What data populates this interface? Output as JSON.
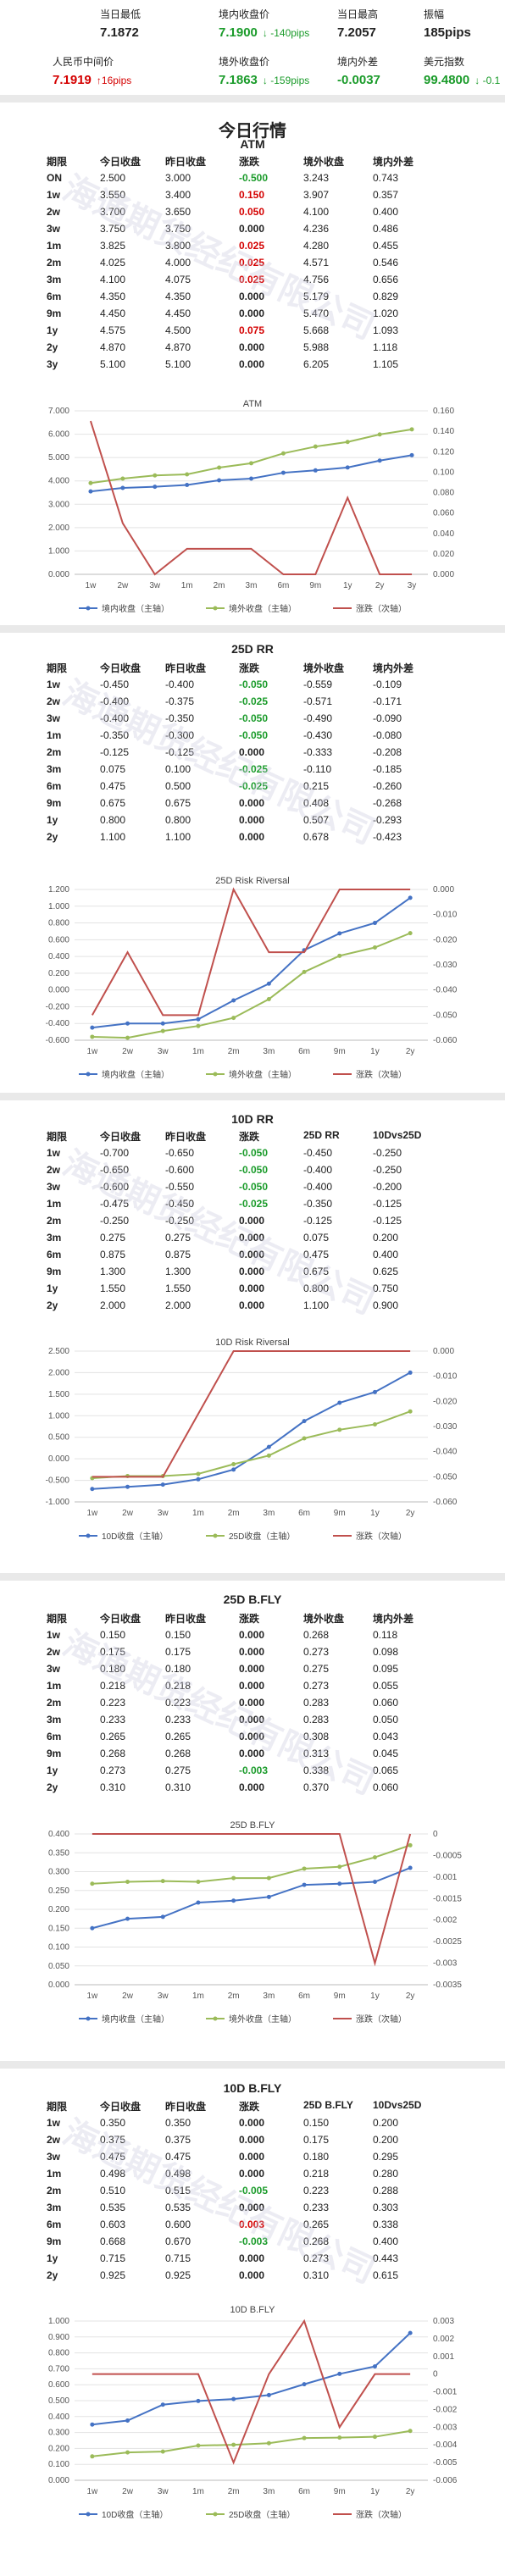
{
  "quote": {
    "items": [
      {
        "label": "当日最低",
        "value": "7.1872",
        "change": "",
        "cls": ""
      },
      {
        "label": "境内收盘价",
        "value": "7.1900",
        "change": "↓ -140pips",
        "cls": "down"
      },
      {
        "label": "当日最高",
        "value": "7.2057",
        "change": "",
        "cls": ""
      },
      {
        "label": "振幅",
        "value": "185pips",
        "change": "",
        "cls": ""
      },
      {
        "label": "人民币中间价",
        "value": "7.1919",
        "change": "↑16pips",
        "cls": "up"
      },
      {
        "label": "境外收盘价",
        "value": "7.1863",
        "change": "↓ -159pips",
        "cls": "down"
      },
      {
        "label": "境内外差",
        "value": "-0.0037",
        "change": "",
        "cls": "down"
      },
      {
        "label": "美元指数",
        "value": "99.4800",
        "change": "↓ -0.1",
        "cls": "down"
      }
    ]
  },
  "main_title": "今日行情",
  "watermark": "海通期货经纪有限公司",
  "sections": [
    {
      "title": "ATM",
      "headers": [
        "期限",
        "今日收盘",
        "昨日收盘",
        "涨跌",
        "境外收盘",
        "境内外差"
      ],
      "rows": [
        [
          "ON",
          "2.500",
          "3.000",
          "-0.500",
          "3.243",
          "0.743"
        ],
        [
          "1w",
          "3.550",
          "3.400",
          "0.150",
          "3.907",
          "0.357"
        ],
        [
          "2w",
          "3.700",
          "3.650",
          "0.050",
          "4.100",
          "0.400"
        ],
        [
          "3w",
          "3.750",
          "3.750",
          "0.000",
          "4.236",
          "0.486"
        ],
        [
          "1m",
          "3.825",
          "3.800",
          "0.025",
          "4.280",
          "0.455"
        ],
        [
          "2m",
          "4.025",
          "4.000",
          "0.025",
          "4.571",
          "0.546"
        ],
        [
          "3m",
          "4.100",
          "4.075",
          "0.025",
          "4.756",
          "0.656"
        ],
        [
          "6m",
          "4.350",
          "4.350",
          "0.000",
          "5.179",
          "0.829"
        ],
        [
          "9m",
          "4.450",
          "4.450",
          "0.000",
          "5.470",
          "1.020"
        ],
        [
          "1y",
          "4.575",
          "4.500",
          "0.075",
          "5.668",
          "1.093"
        ],
        [
          "2y",
          "4.870",
          "4.870",
          "0.000",
          "5.988",
          "1.118"
        ],
        [
          "3y",
          "5.100",
          "5.100",
          "0.000",
          "6.205",
          "1.105"
        ]
      ]
    },
    {
      "title": "25D RR",
      "headers": [
        "期限",
        "今日收盘",
        "昨日收盘",
        "涨跌",
        "境外收盘",
        "境内外差"
      ],
      "rows": [
        [
          "1w",
          "-0.450",
          "-0.400",
          "-0.050",
          "-0.559",
          "-0.109"
        ],
        [
          "2w",
          "-0.400",
          "-0.375",
          "-0.025",
          "-0.571",
          "-0.171"
        ],
        [
          "3w",
          "-0.400",
          "-0.350",
          "-0.050",
          "-0.490",
          "-0.090"
        ],
        [
          "1m",
          "-0.350",
          "-0.300",
          "-0.050",
          "-0.430",
          "-0.080"
        ],
        [
          "2m",
          "-0.125",
          "-0.125",
          "0.000",
          "-0.333",
          "-0.208"
        ],
        [
          "3m",
          "0.075",
          "0.100",
          "-0.025",
          "-0.110",
          "-0.185"
        ],
        [
          "6m",
          "0.475",
          "0.500",
          "-0.025",
          "0.215",
          "-0.260"
        ],
        [
          "9m",
          "0.675",
          "0.675",
          "0.000",
          "0.408",
          "-0.268"
        ],
        [
          "1y",
          "0.800",
          "0.800",
          "0.000",
          "0.507",
          "-0.293"
        ],
        [
          "2y",
          "1.100",
          "1.100",
          "0.000",
          "0.678",
          "-0.423"
        ]
      ]
    },
    {
      "title": "10D RR",
      "headers": [
        "期限",
        "今日收盘",
        "昨日收盘",
        "涨跌",
        "25D RR",
        "10Dvs25D"
      ],
      "rows": [
        [
          "1w",
          "-0.700",
          "-0.650",
          "-0.050",
          "-0.450",
          "-0.250"
        ],
        [
          "2w",
          "-0.650",
          "-0.600",
          "-0.050",
          "-0.400",
          "-0.250"
        ],
        [
          "3w",
          "-0.600",
          "-0.550",
          "-0.050",
          "-0.400",
          "-0.200"
        ],
        [
          "1m",
          "-0.475",
          "-0.450",
          "-0.025",
          "-0.350",
          "-0.125"
        ],
        [
          "2m",
          "-0.250",
          "-0.250",
          "0.000",
          "-0.125",
          "-0.125"
        ],
        [
          "3m",
          "0.275",
          "0.275",
          "0.000",
          "0.075",
          "0.200"
        ],
        [
          "6m",
          "0.875",
          "0.875",
          "0.000",
          "0.475",
          "0.400"
        ],
        [
          "9m",
          "1.300",
          "1.300",
          "0.000",
          "0.675",
          "0.625"
        ],
        [
          "1y",
          "1.550",
          "1.550",
          "0.000",
          "0.800",
          "0.750"
        ],
        [
          "2y",
          "2.000",
          "2.000",
          "0.000",
          "1.100",
          "0.900"
        ]
      ]
    },
    {
      "title": "25D B.FLY",
      "headers": [
        "期限",
        "今日收盘",
        "昨日收盘",
        "涨跌",
        "境外收盘",
        "境内外差"
      ],
      "rows": [
        [
          "1w",
          "0.150",
          "0.150",
          "0.000",
          "0.268",
          "0.118"
        ],
        [
          "2w",
          "0.175",
          "0.175",
          "0.000",
          "0.273",
          "0.098"
        ],
        [
          "3w",
          "0.180",
          "0.180",
          "0.000",
          "0.275",
          "0.095"
        ],
        [
          "1m",
          "0.218",
          "0.218",
          "0.000",
          "0.273",
          "0.055"
        ],
        [
          "2m",
          "0.223",
          "0.223",
          "0.000",
          "0.283",
          "0.060"
        ],
        [
          "3m",
          "0.233",
          "0.233",
          "0.000",
          "0.283",
          "0.050"
        ],
        [
          "6m",
          "0.265",
          "0.265",
          "0.000",
          "0.308",
          "0.043"
        ],
        [
          "9m",
          "0.268",
          "0.268",
          "0.000",
          "0.313",
          "0.045"
        ],
        [
          "1y",
          "0.273",
          "0.275",
          "-0.003",
          "0.338",
          "0.065"
        ],
        [
          "2y",
          "0.310",
          "0.310",
          "0.000",
          "0.370",
          "0.060"
        ]
      ]
    },
    {
      "title": "10D B.FLY",
      "headers": [
        "期限",
        "今日收盘",
        "昨日收盘",
        "涨跌",
        "25D B.FLY",
        "10Dvs25D"
      ],
      "rows": [
        [
          "1w",
          "0.350",
          "0.350",
          "0.000",
          "0.150",
          "0.200"
        ],
        [
          "2w",
          "0.375",
          "0.375",
          "0.000",
          "0.175",
          "0.200"
        ],
        [
          "3w",
          "0.475",
          "0.475",
          "0.000",
          "0.180",
          "0.295"
        ],
        [
          "1m",
          "0.498",
          "0.498",
          "0.000",
          "0.218",
          "0.280"
        ],
        [
          "2m",
          "0.510",
          "0.515",
          "-0.005",
          "0.223",
          "0.288"
        ],
        [
          "3m",
          "0.535",
          "0.535",
          "0.000",
          "0.233",
          "0.303"
        ],
        [
          "6m",
          "0.603",
          "0.600",
          "0.003",
          "0.265",
          "0.338"
        ],
        [
          "9m",
          "0.668",
          "0.670",
          "-0.003",
          "0.268",
          "0.400"
        ],
        [
          "1y",
          "0.715",
          "0.715",
          "0.000",
          "0.273",
          "0.443"
        ],
        [
          "2y",
          "0.925",
          "0.925",
          "0.000",
          "0.310",
          "0.615"
        ]
      ]
    }
  ],
  "chart_data": [
    {
      "type": "line",
      "title": "ATM",
      "categories": [
        "1w",
        "2w",
        "3w",
        "1m",
        "2m",
        "3m",
        "6m",
        "9m",
        "1y",
        "2y",
        "3y"
      ],
      "series": [
        {
          "name": "境内收盘（主轴）",
          "axis": "left",
          "color": "#4472c4",
          "values": [
            3.55,
            3.7,
            3.75,
            3.825,
            4.025,
            4.1,
            4.35,
            4.45,
            4.575,
            4.87,
            5.1
          ]
        },
        {
          "name": "境外收盘（主轴）",
          "axis": "left",
          "color": "#9bbb59",
          "values": [
            3.907,
            4.1,
            4.236,
            4.28,
            4.571,
            4.756,
            5.179,
            5.47,
            5.668,
            5.988,
            6.205
          ]
        },
        {
          "name": "涨跌（次轴）",
          "axis": "right",
          "color": "#c0504d",
          "values": [
            0.15,
            0.05,
            0,
            0.025,
            0.025,
            0.025,
            0,
            0,
            0.075,
            0,
            0
          ]
        }
      ],
      "ylim": [
        0,
        7
      ],
      "yticks": [
        "0.000",
        "1.000",
        "2.000",
        "3.000",
        "4.000",
        "5.000",
        "6.000",
        "7.000"
      ],
      "y2lim": [
        0,
        0.16
      ],
      "y2ticks": [
        "0.000",
        "0.020",
        "0.040",
        "0.060",
        "0.080",
        "0.100",
        "0.120",
        "0.140",
        "0.160"
      ]
    },
    {
      "type": "line",
      "title": "25D Risk Riversal",
      "categories": [
        "1w",
        "2w",
        "3w",
        "1m",
        "2m",
        "3m",
        "6m",
        "9m",
        "1y",
        "2y"
      ],
      "series": [
        {
          "name": "境内收盘（主轴）",
          "axis": "left",
          "color": "#4472c4",
          "values": [
            -0.45,
            -0.4,
            -0.4,
            -0.35,
            -0.125,
            0.075,
            0.475,
            0.675,
            0.8,
            1.1
          ]
        },
        {
          "name": "境外收盘（主轴）",
          "axis": "left",
          "color": "#9bbb59",
          "values": [
            -0.559,
            -0.571,
            -0.49,
            -0.43,
            -0.333,
            -0.11,
            0.215,
            0.408,
            0.507,
            0.678
          ]
        },
        {
          "name": "涨跌（次轴）",
          "axis": "right",
          "color": "#c0504d",
          "values": [
            -0.05,
            -0.025,
            -0.05,
            -0.05,
            0,
            -0.025,
            -0.025,
            0,
            0,
            0
          ]
        }
      ],
      "ylim": [
        -0.6,
        1.2
      ],
      "yticks": [
        "-0.600",
        "-0.400",
        "-0.200",
        "0.000",
        "0.200",
        "0.400",
        "0.600",
        "0.800",
        "1.000",
        "1.200"
      ],
      "y2lim": [
        -0.06,
        0
      ],
      "y2ticks": [
        "-0.060",
        "-0.050",
        "-0.040",
        "-0.030",
        "-0.020",
        "-0.010",
        "0.000"
      ]
    },
    {
      "type": "line",
      "title": "10D Risk Riversal",
      "categories": [
        "1w",
        "2w",
        "3w",
        "1m",
        "2m",
        "3m",
        "6m",
        "9m",
        "1y",
        "2y"
      ],
      "series": [
        {
          "name": "10D收盘（主轴）",
          "axis": "left",
          "color": "#4472c4",
          "values": [
            -0.7,
            -0.65,
            -0.6,
            -0.475,
            -0.25,
            0.275,
            0.875,
            1.3,
            1.55,
            2.0
          ]
        },
        {
          "name": "25D收盘（主轴）",
          "axis": "left",
          "color": "#9bbb59",
          "values": [
            -0.45,
            -0.4,
            -0.4,
            -0.35,
            -0.125,
            0.075,
            0.475,
            0.675,
            0.8,
            1.1
          ]
        },
        {
          "name": "涨跌（次轴）",
          "axis": "right",
          "color": "#c0504d",
          "values": [
            -0.05,
            -0.05,
            -0.05,
            -0.025,
            0,
            0,
            0,
            0,
            0,
            0
          ]
        }
      ],
      "ylim": [
        -1,
        2.5
      ],
      "yticks": [
        "-1.000",
        "-0.500",
        "0.000",
        "0.500",
        "1.000",
        "1.500",
        "2.000",
        "2.500"
      ],
      "y2lim": [
        -0.06,
        0
      ],
      "y2ticks": [
        "-0.060",
        "-0.050",
        "-0.040",
        "-0.030",
        "-0.020",
        "-0.010",
        "0.000"
      ]
    },
    {
      "type": "line",
      "title": "25D B.FLY",
      "categories": [
        "1w",
        "2w",
        "3w",
        "1m",
        "2m",
        "3m",
        "6m",
        "9m",
        "1y",
        "2y"
      ],
      "series": [
        {
          "name": "境内收盘（主轴）",
          "axis": "left",
          "color": "#4472c4",
          "values": [
            0.15,
            0.175,
            0.18,
            0.218,
            0.223,
            0.233,
            0.265,
            0.268,
            0.273,
            0.31
          ]
        },
        {
          "name": "境外收盘（主轴）",
          "axis": "left",
          "color": "#9bbb59",
          "values": [
            0.268,
            0.273,
            0.275,
            0.273,
            0.283,
            0.283,
            0.308,
            0.313,
            0.338,
            0.37
          ]
        },
        {
          "name": "涨跌（次轴）",
          "axis": "right",
          "color": "#c0504d",
          "values": [
            0,
            0,
            0,
            0,
            0,
            0,
            0,
            0,
            -0.003,
            0
          ]
        }
      ],
      "ylim": [
        0,
        0.4
      ],
      "yticks": [
        "0.000",
        "0.050",
        "0.100",
        "0.150",
        "0.200",
        "0.250",
        "0.300",
        "0.350",
        "0.400"
      ],
      "y2lim": [
        -0.0035,
        0
      ],
      "y2ticks": [
        "-0.0035",
        "-0.003",
        "-0.0025",
        "-0.002",
        "-0.0015",
        "-0.001",
        "-0.0005",
        "0"
      ]
    },
    {
      "type": "line",
      "title": "10D B.FLY",
      "categories": [
        "1w",
        "2w",
        "3w",
        "1m",
        "2m",
        "3m",
        "6m",
        "9m",
        "1y",
        "2y"
      ],
      "series": [
        {
          "name": "10D收盘（主轴）",
          "axis": "left",
          "color": "#4472c4",
          "values": [
            0.35,
            0.375,
            0.475,
            0.498,
            0.51,
            0.535,
            0.603,
            0.668,
            0.715,
            0.925
          ]
        },
        {
          "name": "25D收盘（主轴）",
          "axis": "left",
          "color": "#9bbb59",
          "values": [
            0.15,
            0.175,
            0.18,
            0.218,
            0.223,
            0.233,
            0.265,
            0.268,
            0.273,
            0.31
          ]
        },
        {
          "name": "涨跌（次轴）",
          "axis": "right",
          "color": "#c0504d",
          "values": [
            0,
            0,
            0,
            0,
            -0.005,
            0,
            0.003,
            -0.003,
            0,
            0
          ]
        }
      ],
      "ylim": [
        0,
        1
      ],
      "yticks": [
        "0.000",
        "0.100",
        "0.200",
        "0.300",
        "0.400",
        "0.500",
        "0.600",
        "0.700",
        "0.800",
        "0.900",
        "1.000"
      ],
      "y2lim": [
        -0.006,
        0.003
      ],
      "y2ticks": [
        "-0.006",
        "-0.005",
        "-0.004",
        "-0.003",
        "-0.002",
        "-0.001",
        "0",
        "0.001",
        "0.002",
        "0.003"
      ]
    }
  ]
}
